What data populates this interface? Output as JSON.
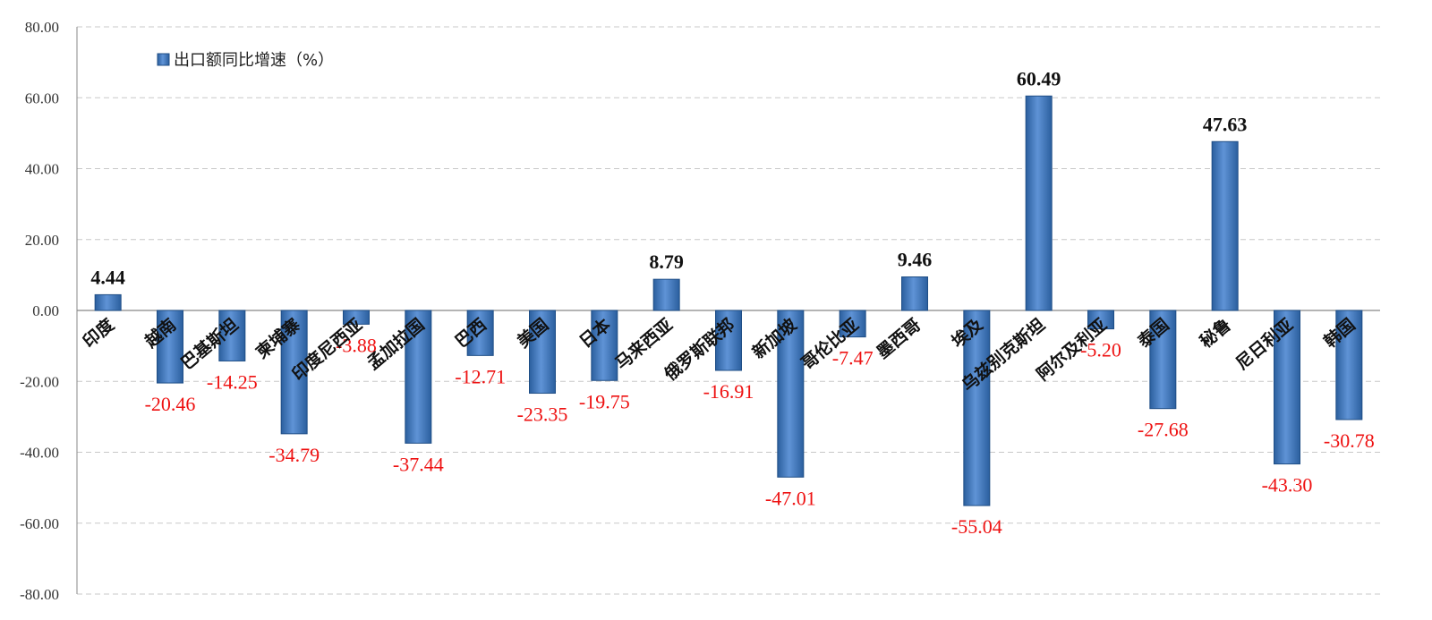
{
  "chart_data": {
    "type": "bar",
    "title": "",
    "xlabel": "",
    "ylabel": "",
    "ylim": [
      -80,
      80
    ],
    "y_ticks": [
      "80.00",
      "60.00",
      "40.00",
      "20.00",
      "0.00",
      "-20.00",
      "-40.00",
      "-60.00",
      "-80.00"
    ],
    "grid": true,
    "legend_position": "top-left",
    "categories": [
      "印度",
      "越南",
      "巴基斯坦",
      "柬埔寨",
      "印度尼西亚",
      "孟加拉国",
      "巴西",
      "美国",
      "日本",
      "马来西亚",
      "俄罗斯联邦",
      "新加坡",
      "哥伦比亚",
      "墨西哥",
      "埃及",
      "乌兹别克斯坦",
      "阿尔及利亚",
      "泰国",
      "秘鲁",
      "尼日利亚",
      "韩国"
    ],
    "series": [
      {
        "name": "出口额同比增速（%）",
        "values": [
          4.44,
          -20.46,
          -14.25,
          -34.79,
          -3.88,
          -37.44,
          -12.71,
          -23.35,
          -19.75,
          8.79,
          -16.91,
          -47.01,
          -7.47,
          9.46,
          -55.04,
          60.49,
          -5.2,
          -27.68,
          47.63,
          -43.3,
          -30.78
        ],
        "labels": [
          "4.44",
          "-20.46",
          "-14.25",
          "-34.79",
          "-3.88",
          "-37.44",
          "-12.71",
          "-23.35",
          "-19.75",
          "8.79",
          "-16.91",
          "-47.01",
          "-7.47",
          "9.46",
          "-55.04",
          "60.49",
          "-5.20",
          "-27.68",
          "47.63",
          "-43.30",
          "-30.78"
        ]
      }
    ],
    "colors": {
      "bar_top": "#5f93d6",
      "bar_bottom": "#2b5f9e",
      "bar_edge": "#1f4e86",
      "positive_label": "#111111",
      "negative_label": "#ee1111",
      "grid": "#c8c8c8",
      "axis": "#888888"
    }
  }
}
